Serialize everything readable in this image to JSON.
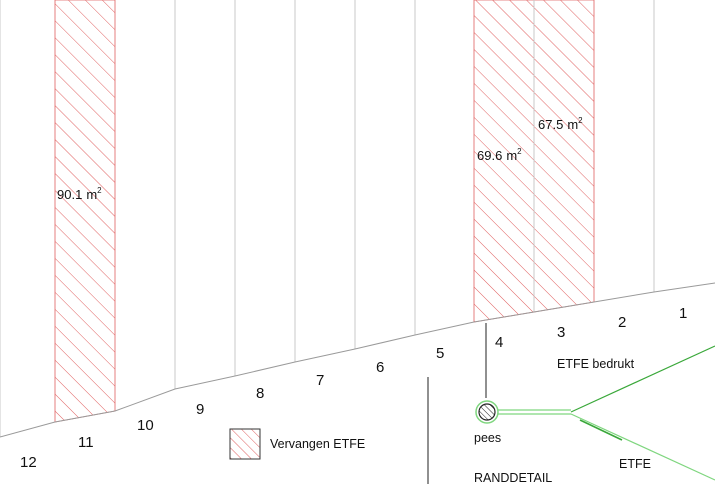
{
  "panels": {
    "numbers": [
      "12",
      "11",
      "10",
      "9",
      "8",
      "7",
      "6",
      "5",
      "4",
      "3",
      "2",
      "1"
    ]
  },
  "areas": [
    {
      "value": "90.1",
      "unit": "m",
      "exp": "2"
    },
    {
      "value": "69.6",
      "unit": "m",
      "exp": "2"
    },
    {
      "value": "67.5",
      "unit": "m",
      "exp": "2"
    }
  ],
  "legend": {
    "label": "Vervangen ETFE"
  },
  "detail": {
    "etfe_printed": "ETFE bedrukt",
    "cable": "pees",
    "etfe": "ETFE",
    "title": "RANDDETAIL"
  },
  "colors": {
    "hatch": "#e06060",
    "membrane": "#7fd67f",
    "membrane_dark": "#3aa83a",
    "grid": "#c8c8c8",
    "outline": "#9a9a9a"
  }
}
